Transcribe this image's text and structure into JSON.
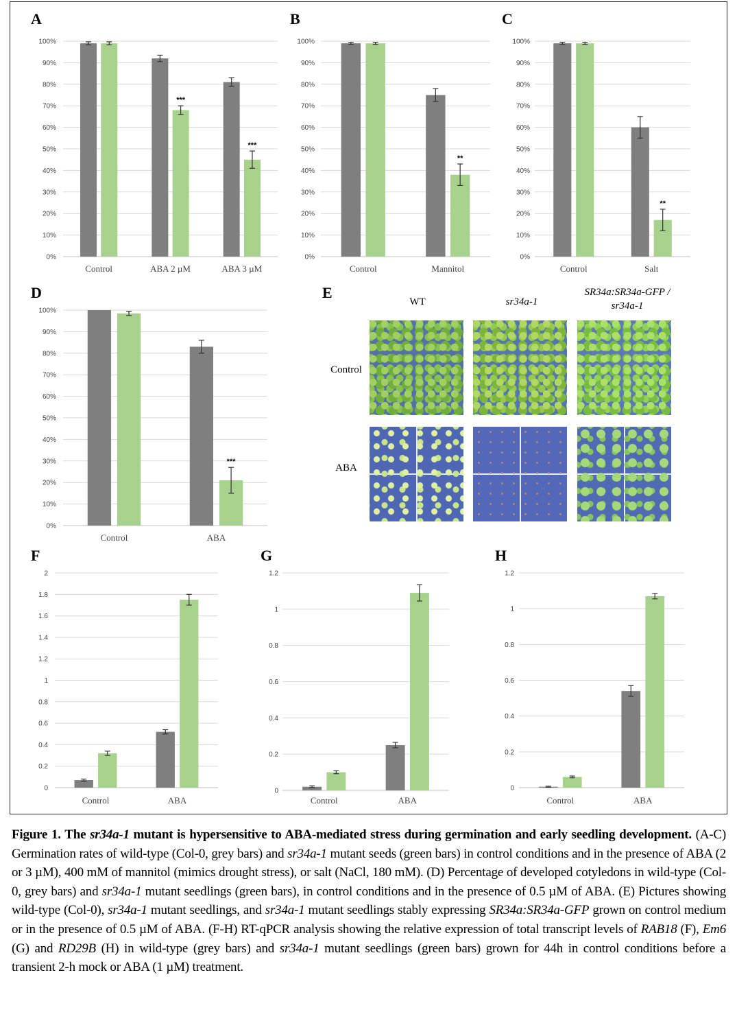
{
  "colors": {
    "wt": "#7f7f7f",
    "mutant": "#a9d18e",
    "grid": "#d9d9d9"
  },
  "panels": {
    "a": "A",
    "b": "B",
    "c": "C",
    "d": "D",
    "e": "E",
    "f": "F",
    "g": "G",
    "h": "H"
  },
  "chart_data": [
    {
      "panel": "A",
      "type": "bar",
      "categories": [
        "Control",
        "ABA 2 µM",
        "ABA 3 µM"
      ],
      "ylim": [
        0,
        100
      ],
      "yticks": [
        "0%",
        "10%",
        "20%",
        "30%",
        "40%",
        "50%",
        "60%",
        "70%",
        "80%",
        "90%",
        "100%"
      ],
      "series": [
        {
          "name": "wild-type (Col-0)",
          "values": [
            99,
            92,
            81
          ],
          "errors": [
            0.7,
            1.5,
            2
          ]
        },
        {
          "name": "sr34a-1",
          "values": [
            99,
            68,
            45
          ],
          "errors": [
            0.7,
            2,
            4
          ]
        }
      ],
      "significance": [
        "",
        "***",
        "***"
      ],
      "grid": true
    },
    {
      "panel": "B",
      "type": "bar",
      "categories": [
        "Control",
        "Mannitol"
      ],
      "ylim": [
        0,
        100
      ],
      "yticks": [
        "0%",
        "10%",
        "20%",
        "30%",
        "40%",
        "50%",
        "60%",
        "70%",
        "80%",
        "90%",
        "100%"
      ],
      "series": [
        {
          "name": "wild-type (Col-0)",
          "values": [
            99,
            75
          ],
          "errors": [
            0.5,
            3
          ]
        },
        {
          "name": "sr34a-1",
          "values": [
            99,
            38
          ],
          "errors": [
            0.5,
            5
          ]
        }
      ],
      "significance": [
        "",
        "**"
      ],
      "grid": true
    },
    {
      "panel": "C",
      "type": "bar",
      "categories": [
        "Control",
        "Salt"
      ],
      "ylim": [
        0,
        100
      ],
      "yticks": [
        "0%",
        "10%",
        "20%",
        "30%",
        "40%",
        "50%",
        "60%",
        "70%",
        "80%",
        "90%",
        "100%"
      ],
      "series": [
        {
          "name": "wild-type (Col-0)",
          "values": [
            99,
            60
          ],
          "errors": [
            0.5,
            5
          ]
        },
        {
          "name": "sr34a-1",
          "values": [
            99,
            17
          ],
          "errors": [
            0.5,
            5
          ]
        }
      ],
      "significance": [
        "",
        "**"
      ],
      "grid": true
    },
    {
      "panel": "D",
      "type": "bar",
      "categories": [
        "Control",
        "ABA"
      ],
      "ylim": [
        0,
        100
      ],
      "yticks": [
        "0%",
        "10%",
        "20%",
        "30%",
        "40%",
        "50%",
        "60%",
        "70%",
        "80%",
        "90%",
        "100%"
      ],
      "series": [
        {
          "name": "wild-type (Col-0)",
          "values": [
            100,
            83
          ],
          "errors": [
            0,
            3
          ]
        },
        {
          "name": "sr34a-1",
          "values": [
            98.5,
            21
          ],
          "errors": [
            1,
            6
          ]
        }
      ],
      "significance": [
        "",
        "***"
      ],
      "grid": true
    },
    {
      "panel": "F",
      "type": "bar",
      "categories": [
        "Control",
        "ABA"
      ],
      "ylim": [
        0,
        2
      ],
      "yticks": [
        "0",
        "0.2",
        "0.4",
        "0.6",
        "0.8",
        "1",
        "1.2",
        "1.4",
        "1.6",
        "1.8",
        "2"
      ],
      "series": [
        {
          "name": "wild-type",
          "values": [
            0.07,
            0.52
          ],
          "errors": [
            0.01,
            0.02
          ]
        },
        {
          "name": "sr34a-1",
          "values": [
            0.32,
            1.75
          ],
          "errors": [
            0.02,
            0.05
          ]
        }
      ],
      "significance": [
        "",
        ""
      ],
      "grid": true
    },
    {
      "panel": "G",
      "type": "bar",
      "categories": [
        "Control",
        "ABA"
      ],
      "ylim": [
        0,
        1.2
      ],
      "yticks": [
        "0",
        "0.2",
        "0.4",
        "0.6",
        "0.8",
        "1",
        "1.2"
      ],
      "series": [
        {
          "name": "wild-type",
          "values": [
            0.02,
            0.25
          ],
          "errors": [
            0.005,
            0.015
          ]
        },
        {
          "name": "sr34a-1",
          "values": [
            0.1,
            1.09
          ],
          "errors": [
            0.008,
            0.045
          ]
        }
      ],
      "significance": [
        "",
        ""
      ],
      "grid": true
    },
    {
      "panel": "H",
      "type": "bar",
      "categories": [
        "Control",
        "ABA"
      ],
      "ylim": [
        0,
        1.2
      ],
      "yticks": [
        "0",
        "0.2",
        "0.4",
        "0.6",
        "0.8",
        "1",
        "1.2"
      ],
      "series": [
        {
          "name": "wild-type",
          "values": [
            0.005,
            0.54
          ],
          "errors": [
            0.003,
            0.03
          ]
        },
        {
          "name": "sr34a-1",
          "values": [
            0.06,
            1.07
          ],
          "errors": [
            0.005,
            0.015
          ]
        }
      ],
      "significance": [
        "",
        ""
      ],
      "grid": true
    }
  ],
  "panel_e": {
    "columns": [
      "WT",
      "sr34a-1",
      "SR34a:SR34a-GFP /",
      "sr34a-1"
    ],
    "rows": [
      "Control",
      "ABA"
    ]
  },
  "caption": [
    {
      "t": "Figure 1. The ",
      "s": "b"
    },
    {
      "t": "sr34a-1",
      "s": "bi"
    },
    {
      "t": " mutant is hypersensitive to ABA-mediated stress during germination and early seedling development.",
      "s": "b"
    },
    {
      "t": " (A-C) Germination rates of wild-type (Col-0, grey bars) and ",
      "s": ""
    },
    {
      "t": "sr34a-1",
      "s": "i"
    },
    {
      "t": " mutant seeds (green bars) in control conditions and in the presence of ABA (2 or 3 µM), 400 mM of mannitol (mimics drought stress), or salt (NaCl, 180 mM). (D) Percentage of developed cotyledons in wild-type (Col-0, grey bars) and ",
      "s": ""
    },
    {
      "t": "sr34a-1",
      "s": "i"
    },
    {
      "t": " mutant seedlings (green bars),  in control conditions and in the presence of 0.5 µM of ABA. (E) Pictures showing wild-type (Col-0), ",
      "s": ""
    },
    {
      "t": "sr34a-1",
      "s": "i"
    },
    {
      "t": " mutant seedlings, and ",
      "s": ""
    },
    {
      "t": "sr34a-1",
      "s": "i"
    },
    {
      "t": " mutant seedlings stably expressing ",
      "s": ""
    },
    {
      "t": "SR34a:SR34a-GFP",
      "s": "i"
    },
    {
      "t": " grown on control medium or in the presence of 0.5 µM of ABA. (F-H) RT-qPCR analysis showing the relative expression of total transcript levels of ",
      "s": ""
    },
    {
      "t": "RAB18",
      "s": "i"
    },
    {
      "t": " (F), ",
      "s": ""
    },
    {
      "t": "Em6",
      "s": "i"
    },
    {
      "t": " (G) and ",
      "s": ""
    },
    {
      "t": "RD29B",
      "s": "i"
    },
    {
      "t": " (H) in wild-type (grey bars) and ",
      "s": ""
    },
    {
      "t": "sr34a-1",
      "s": "i"
    },
    {
      "t": " mutant seedlings (green bars) grown for 44h in control conditions before a transient 2-h mock or ABA (1 µM) treatment.",
      "s": ""
    }
  ]
}
